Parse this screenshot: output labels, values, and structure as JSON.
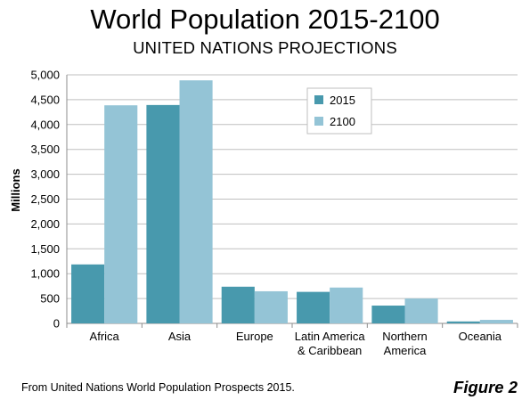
{
  "chart_data": {
    "type": "bar",
    "title": "World Population 2015-2100",
    "subtitle": "UNITED NATIONS PROJECTIONS",
    "xlabel": "",
    "ylabel": "Millions",
    "ylim": [
      0,
      5000
    ],
    "yticks": [
      0,
      500,
      1000,
      1500,
      2000,
      2500,
      3000,
      3500,
      4000,
      4500,
      5000
    ],
    "ytick_labels": [
      "0",
      "500",
      "1,000",
      "1,500",
      "2,000",
      "2,500",
      "3,000",
      "3,500",
      "4,000",
      "4,500",
      "5,000"
    ],
    "grid": true,
    "legend_position": "top-right",
    "categories": [
      [
        "Africa"
      ],
      [
        "Asia"
      ],
      [
        "Europe"
      ],
      [
        "Latin America",
        "& Caribbean"
      ],
      [
        "Northern",
        "America"
      ],
      [
        "Oceania"
      ]
    ],
    "series": [
      {
        "name": "2015",
        "color": "#4899ad",
        "values": [
          1186,
          4393,
          738,
          634,
          358,
          39
        ]
      },
      {
        "name": "2100",
        "color": "#94c4d6",
        "values": [
          4387,
          4889,
          646,
          721,
          500,
          71
        ]
      }
    ]
  },
  "footer": {
    "source": "From  United Nations World Population Prospects 2015.",
    "figure_label": "Figure 2"
  }
}
